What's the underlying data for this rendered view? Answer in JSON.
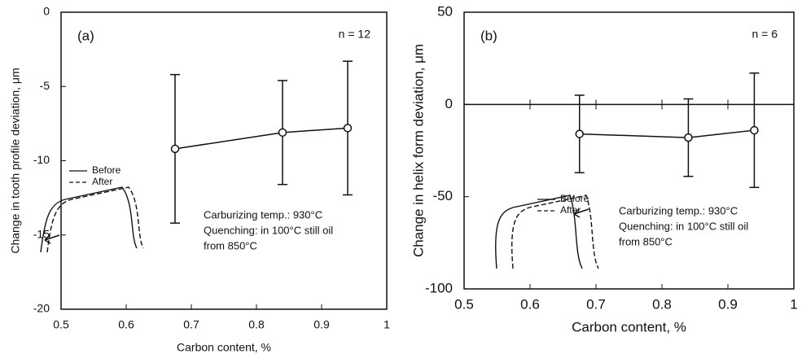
{
  "chart_data": [
    {
      "type": "errorbar-line",
      "panel_label": "(a)",
      "note": "n = 12",
      "xlabel": "Carbon content, %",
      "ylabel": "Change in tooth profile deviation, μm",
      "x": [
        0.675,
        0.84,
        0.94
      ],
      "values": [
        -9.2,
        -8.1,
        -7.8
      ],
      "errors": [
        5,
        3.5,
        4.5
      ],
      "xlim": [
        0.5,
        1
      ],
      "ylim": [
        -20,
        0
      ],
      "xticks": [
        0.5,
        0.6,
        0.7,
        0.8,
        0.9,
        1
      ],
      "yticks": [
        0,
        -5,
        -10,
        -15,
        -20
      ],
      "legend": [
        "Before",
        "After"
      ],
      "annotations": [
        "Carburizing temp.: 930°C",
        "Quenching: in 100°C still oil",
        "from 850°C"
      ]
    },
    {
      "type": "errorbar-line",
      "panel_label": "(b)",
      "note": "n = 6",
      "xlabel": "Carbon content, %",
      "ylabel": "Change in helix form deviation, μm",
      "x": [
        0.675,
        0.84,
        0.94
      ],
      "values": [
        -16,
        -18,
        -14
      ],
      "errors": [
        21,
        21,
        31
      ],
      "xlim": [
        0.5,
        1
      ],
      "ylim": [
        -100,
        50
      ],
      "xticks": [
        0.5,
        0.6,
        0.7,
        0.8,
        0.9,
        1
      ],
      "yticks": [
        50,
        0,
        -50,
        -100
      ],
      "legend": [
        "Before",
        "After"
      ],
      "annotations": [
        "Carburizing temp.: 930°C",
        "Quenching: in 100°C still oil",
        "from 850°C"
      ]
    }
  ]
}
